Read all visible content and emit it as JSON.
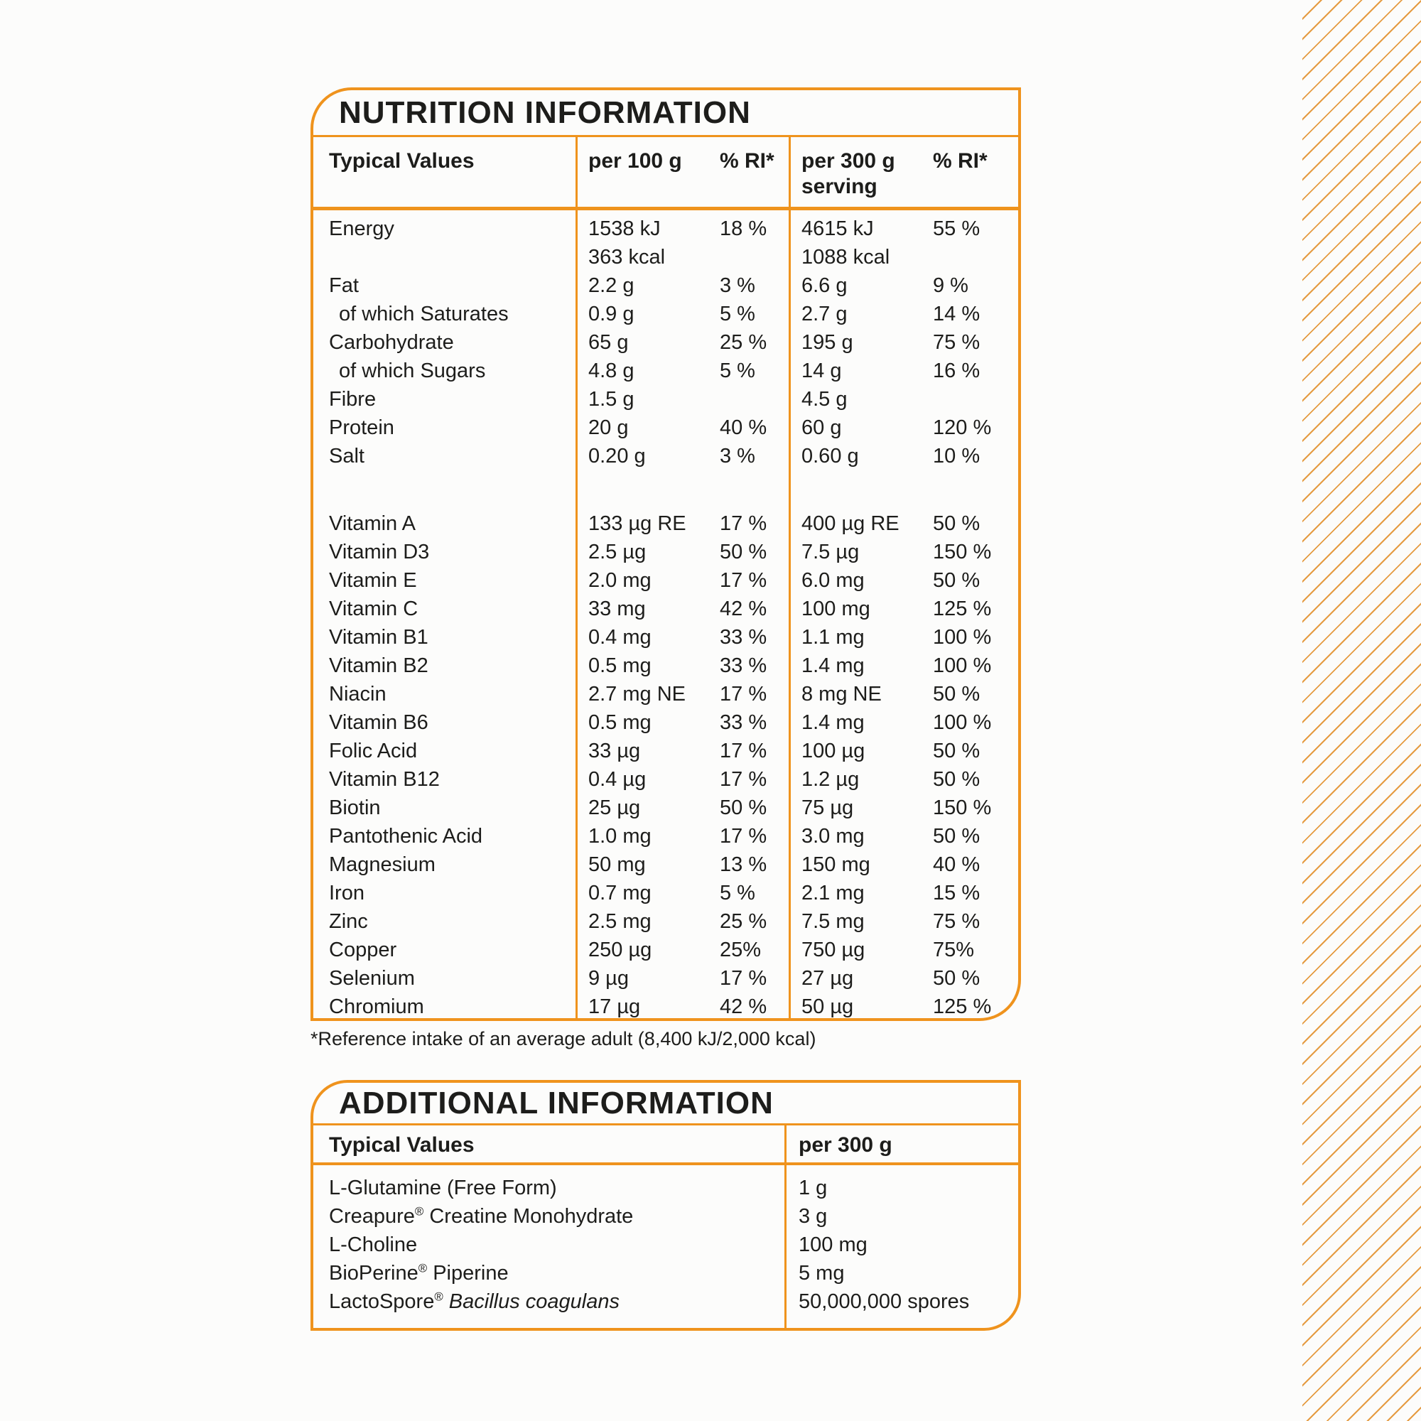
{
  "page": {
    "background": "#FCFCFB",
    "accent_orange": "#EF931D",
    "stripe_orange": "#E59B41",
    "text_color": "#1D1D1B",
    "decoration": "diagonal-stripes-right"
  },
  "nutrition": {
    "title": "NUTRITION INFORMATION",
    "headers": {
      "typical_values": "Typical Values",
      "per_100g": "per 100 g",
      "ri_100": "% RI*",
      "per_300g": "per 300 g\nserving",
      "ri_300": "% RI*"
    },
    "rows": [
      {
        "label": "Energy",
        "a100": "1538 kJ\n363 kcal",
        "r100": "18 %",
        "a300": "4615 kJ\n1088 kcal",
        "r300": "55 %"
      },
      {
        "label": "Fat",
        "a100": "2.2 g",
        "r100": "3 %",
        "a300": "6.6 g",
        "r300": "9 %"
      },
      {
        "label": "of which Saturates",
        "indent": true,
        "a100": "0.9 g",
        "r100": "5 %",
        "a300": "2.7 g",
        "r300": "14 %"
      },
      {
        "label": "Carbohydrate",
        "a100": "65 g",
        "r100": "25 %",
        "a300": "195 g",
        "r300": "75 %"
      },
      {
        "label": "of which Sugars",
        "indent": true,
        "a100": "4.8 g",
        "r100": "5 %",
        "a300": "14 g",
        "r300": "16 %"
      },
      {
        "label": "Fibre",
        "a100": "1.5 g",
        "r100": "",
        "a300": "4.5 g",
        "r300": ""
      },
      {
        "label": "Protein",
        "a100": "20 g",
        "r100": "40 %",
        "a300": "60 g",
        "r300": "120 %"
      },
      {
        "label": "Salt",
        "a100": "0.20 g",
        "r100": "3 %",
        "a300": "0.60 g",
        "r300": "10 %"
      },
      {
        "spacer": true
      },
      {
        "label": "Vitamin A",
        "a100": "133 µg RE",
        "r100": "17 %",
        "a300": "400 µg RE",
        "r300": "50 %"
      },
      {
        "label": "Vitamin D3",
        "a100": "2.5 µg",
        "r100": "50 %",
        "a300": "7.5 µg",
        "r300": "150 %"
      },
      {
        "label": "Vitamin E",
        "a100": "2.0 mg",
        "r100": "17 %",
        "a300": "6.0 mg",
        "r300": "50 %"
      },
      {
        "label": "Vitamin C",
        "a100": "33 mg",
        "r100": "42 %",
        "a300": "100 mg",
        "r300": "125 %"
      },
      {
        "label": "Vitamin B1",
        "a100": "0.4 mg",
        "r100": "33 %",
        "a300": "1.1 mg",
        "r300": "100 %"
      },
      {
        "label": "Vitamin B2",
        "a100": "0.5 mg",
        "r100": "33 %",
        "a300": "1.4 mg",
        "r300": "100 %"
      },
      {
        "label": "Niacin",
        "a100": "2.7 mg NE",
        "r100": "17 %",
        "a300": "8 mg NE",
        "r300": "50 %"
      },
      {
        "label": "Vitamin B6",
        "a100": "0.5 mg",
        "r100": "33 %",
        "a300": "1.4 mg",
        "r300": "100 %"
      },
      {
        "label": "Folic Acid",
        "a100": "33 µg",
        "r100": "17 %",
        "a300": "100 µg",
        "r300": "50 %"
      },
      {
        "label": "Vitamin B12",
        "a100": "0.4 µg",
        "r100": "17 %",
        "a300": "1.2 µg",
        "r300": "50 %"
      },
      {
        "label": "Biotin",
        "a100": "25 µg",
        "r100": "50 %",
        "a300": "75 µg",
        "r300": "150 %"
      },
      {
        "label": "Pantothenic Acid",
        "a100": "1.0 mg",
        "r100": "17 %",
        "a300": "3.0 mg",
        "r300": "50 %"
      },
      {
        "label": "Magnesium",
        "a100": "50 mg",
        "r100": "13 %",
        "a300": "150 mg",
        "r300": "40 %"
      },
      {
        "label": "Iron",
        "a100": "0.7 mg",
        "r100": "5 %",
        "a300": "2.1 mg",
        "r300": "15 %"
      },
      {
        "label": "Zinc",
        "a100": "2.5 mg",
        "r100": "25 %",
        "a300": "7.5 mg",
        "r300": "75 %"
      },
      {
        "label": "Copper",
        "a100": "250 µg",
        "r100": "25%",
        "a300": "750 µg",
        "r300": "75%"
      },
      {
        "label": "Selenium",
        "a100": "9 µg",
        "r100": "17 %",
        "a300": "27 µg",
        "r300": "50 %"
      },
      {
        "label": "Chromium",
        "a100": "17 µg",
        "r100": "42 %",
        "a300": "50 µg",
        "r300": "125 %"
      }
    ],
    "footnote": "*Reference intake of an average adult (8,400 kJ/2,000 kcal)"
  },
  "additional": {
    "title": "ADDITIONAL INFORMATION",
    "headers": {
      "typical_values": "Typical Values",
      "per_300g": "per 300 g"
    },
    "rows": [
      {
        "pre": "L-Glutamine (Free Form)",
        "value": "1 g"
      },
      {
        "pre": "Creapure",
        "sup": "®",
        "post": " Creatine Monohydrate",
        "value": "3 g"
      },
      {
        "pre": "L-Choline",
        "value": "100 mg"
      },
      {
        "pre": "BioPerine",
        "sup": "®",
        "post": " Piperine",
        "value": "5 mg"
      },
      {
        "pre": "LactoSpore",
        "sup": "®",
        "italic": " Bacillus coagulans",
        "value": "50,000,000 spores"
      }
    ]
  }
}
